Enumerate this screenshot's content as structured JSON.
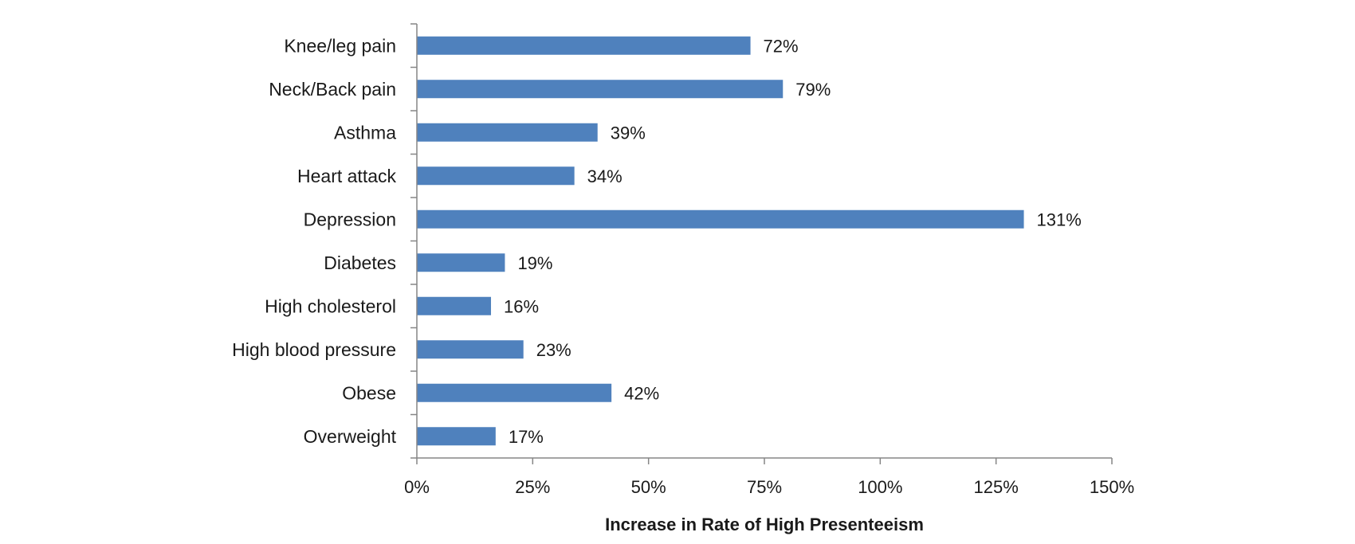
{
  "chart_data": {
    "type": "bar",
    "orientation": "horizontal",
    "title": "",
    "xlabel": "Increase in Rate of High Presenteeism",
    "ylabel": "",
    "categories": [
      "Knee/leg pain",
      "Neck/Back pain",
      "Asthma",
      "Heart attack",
      "Depression",
      "Diabetes",
      "High cholesterol",
      "High blood pressure",
      "Obese",
      "Overweight"
    ],
    "values": [
      72,
      79,
      39,
      34,
      131,
      19,
      16,
      23,
      42,
      17
    ],
    "value_labels": [
      "72%",
      "79%",
      "39%",
      "34%",
      "131%",
      "19%",
      "16%",
      "23%",
      "42%",
      "17%"
    ],
    "xlim": [
      0,
      150
    ],
    "xticks": [
      0,
      25,
      50,
      75,
      100,
      125,
      150
    ],
    "xtick_labels": [
      "0%",
      "25%",
      "50%",
      "75%",
      "100%",
      "125%",
      "150%"
    ],
    "grid": false,
    "legend": "none",
    "bar_color": "#4F81BD",
    "axis_color": "#868686"
  }
}
